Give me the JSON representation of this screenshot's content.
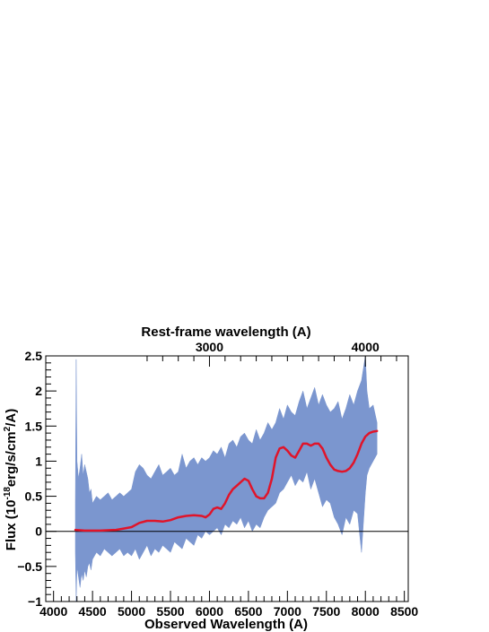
{
  "chart_data": {
    "type": "line",
    "title": "",
    "xlabel": "Observed Wavelength (A)",
    "top_xlabel": "Rest-frame wavelength (A)",
    "ylabel_parts": {
      "prefix": "Flux (10",
      "exp1": "-18",
      "mid": "erg/s/cm",
      "exp2": "2",
      "suffix": "/A)"
    },
    "xlim": [
      3900,
      8550
    ],
    "ylim": [
      -1,
      2.5
    ],
    "xticks": [
      4000,
      4500,
      5000,
      5500,
      6000,
      6500,
      7000,
      7500,
      8000,
      8500
    ],
    "xtick_labels": [
      "4000",
      "4500",
      "5000",
      "5500",
      "6000",
      "6500",
      "7000",
      "7500",
      "8000",
      "8500"
    ],
    "yticks": [
      -1,
      -0.5,
      0,
      0.5,
      1,
      1.5,
      2,
      2.5
    ],
    "ytick_labels": [
      "−1",
      "−0.5",
      "0",
      "0.5",
      "1",
      "1.5",
      "2",
      "2.5"
    ],
    "top_xticks": [
      3000,
      4000
    ],
    "top_xtick_labels": [
      "3000",
      "4000"
    ],
    "redshift_factor": 1.03,
    "zero_line": true,
    "colors": {
      "band": "#7b96cf",
      "model": "#e0142a",
      "axes": "#000000"
    },
    "series": [
      {
        "type": "area",
        "x": [
          4280,
          4290,
          4300,
          4320,
          4340,
          4360,
          4380,
          4400,
          4420,
          4440,
          4460,
          4480,
          4500,
          4550,
          4600,
          4650,
          4700,
          4750,
          4800,
          4850,
          4900,
          4950,
          5000,
          5050,
          5100,
          5150,
          5200,
          5250,
          5300,
          5350,
          5400,
          5450,
          5500,
          5550,
          5600,
          5650,
          5700,
          5750,
          5800,
          5850,
          5900,
          5950,
          6000,
          6050,
          6100,
          6150,
          6200,
          6250,
          6300,
          6350,
          6400,
          6450,
          6500,
          6550,
          6600,
          6650,
          6700,
          6750,
          6800,
          6850,
          6900,
          6950,
          7000,
          7050,
          7100,
          7150,
          7200,
          7250,
          7300,
          7350,
          7400,
          7450,
          7500,
          7550,
          7600,
          7650,
          7700,
          7750,
          7800,
          7850,
          7900,
          7950,
          8000,
          8020,
          8050,
          8100,
          8150
        ],
        "upper": [
          0.4,
          2.45,
          1.0,
          0.75,
          0.9,
          1.1,
          0.8,
          0.95,
          0.85,
          0.75,
          0.55,
          0.6,
          0.4,
          0.5,
          0.45,
          0.5,
          0.55,
          0.45,
          0.5,
          0.55,
          0.5,
          0.55,
          0.6,
          0.85,
          0.95,
          0.9,
          0.8,
          0.75,
          0.85,
          0.95,
          0.8,
          0.85,
          0.9,
          0.8,
          0.85,
          1.1,
          0.9,
          1.0,
          1.05,
          0.95,
          1.05,
          1.0,
          1.05,
          1.15,
          1.1,
          1.2,
          1.05,
          1.25,
          1.3,
          1.2,
          1.35,
          1.4,
          1.3,
          1.25,
          1.45,
          1.3,
          1.4,
          1.55,
          1.45,
          1.55,
          1.75,
          1.6,
          1.8,
          1.7,
          1.65,
          1.85,
          2.0,
          1.75,
          1.9,
          2.05,
          1.8,
          1.95,
          1.8,
          1.7,
          1.75,
          1.85,
          1.6,
          1.75,
          1.95,
          1.8,
          2.0,
          2.15,
          2.5,
          2.0,
          1.75,
          1.8,
          1.55
        ],
        "lower": [
          -0.3,
          -1.0,
          -0.5,
          -0.65,
          -0.8,
          -0.6,
          -0.7,
          -0.55,
          -0.65,
          -0.5,
          -0.45,
          -0.55,
          -0.4,
          -0.3,
          -0.35,
          -0.25,
          -0.3,
          -0.35,
          -0.3,
          -0.25,
          -0.35,
          -0.3,
          -0.35,
          -0.25,
          -0.4,
          -0.3,
          -0.2,
          -0.35,
          -0.25,
          -0.3,
          -0.2,
          -0.25,
          -0.3,
          -0.15,
          -0.2,
          -0.25,
          -0.1,
          -0.15,
          -0.2,
          -0.05,
          -0.1,
          0.0,
          -0.05,
          0.0,
          0.05,
          -0.05,
          0.1,
          0.05,
          0.15,
          0.1,
          0.2,
          0.05,
          0.15,
          0.0,
          0.1,
          0.05,
          0.2,
          0.3,
          0.35,
          0.4,
          0.55,
          0.6,
          0.7,
          0.8,
          0.65,
          0.75,
          0.7,
          0.85,
          0.6,
          0.75,
          0.55,
          0.35,
          0.45,
          0.4,
          0.2,
          0.1,
          -0.05,
          0.2,
          0.1,
          0.3,
          0.25,
          -0.3,
          0.55,
          0.8,
          0.9,
          1.0,
          1.1
        ]
      },
      {
        "type": "line",
        "x": [
          4280,
          4400,
          4600,
          4800,
          4900,
          5000,
          5100,
          5200,
          5300,
          5400,
          5500,
          5600,
          5700,
          5800,
          5900,
          5950,
          6000,
          6050,
          6100,
          6150,
          6200,
          6250,
          6300,
          6350,
          6400,
          6450,
          6500,
          6550,
          6600,
          6650,
          6700,
          6750,
          6800,
          6850,
          6900,
          6950,
          7000,
          7050,
          7100,
          7150,
          7200,
          7250,
          7300,
          7350,
          7400,
          7450,
          7500,
          7550,
          7600,
          7650,
          7700,
          7750,
          7800,
          7850,
          7900,
          7950,
          8000,
          8050,
          8100,
          8150
        ],
        "y": [
          0.02,
          0.01,
          0.01,
          0.02,
          0.04,
          0.06,
          0.12,
          0.15,
          0.15,
          0.14,
          0.16,
          0.2,
          0.22,
          0.23,
          0.22,
          0.2,
          0.24,
          0.32,
          0.34,
          0.32,
          0.4,
          0.52,
          0.6,
          0.65,
          0.7,
          0.75,
          0.72,
          0.6,
          0.5,
          0.47,
          0.47,
          0.55,
          0.75,
          1.05,
          1.18,
          1.2,
          1.15,
          1.08,
          1.05,
          1.15,
          1.25,
          1.25,
          1.22,
          1.25,
          1.25,
          1.18,
          1.05,
          0.95,
          0.88,
          0.86,
          0.85,
          0.86,
          0.9,
          0.98,
          1.1,
          1.25,
          1.35,
          1.4,
          1.42,
          1.43
        ]
      }
    ]
  }
}
